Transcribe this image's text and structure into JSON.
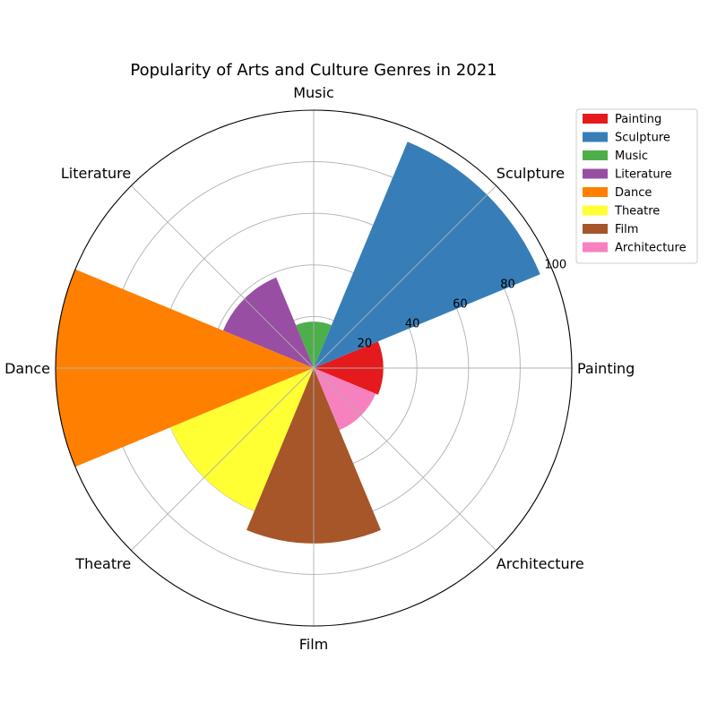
{
  "chart_data": {
    "type": "bar",
    "subtype": "polar",
    "title": "Popularity of Arts and Culture Genres in 2021",
    "categories": [
      "Painting",
      "Sculpture",
      "Music",
      "Literature",
      "Dance",
      "Theatre",
      "Film",
      "Architecture"
    ],
    "values": [
      27,
      95,
      18,
      38,
      100,
      60,
      68,
      26
    ],
    "colors": [
      "#e41a1c",
      "#377eb8",
      "#4daf4a",
      "#984ea3",
      "#ff7f00",
      "#ffff33",
      "#a65628",
      "#f781bf"
    ],
    "rlim": [
      0,
      100
    ],
    "rticks": [
      20,
      40,
      60,
      80,
      100
    ],
    "grid": true,
    "legend": {
      "placement": "top-right",
      "entries": [
        "Painting",
        "Sculpture",
        "Music",
        "Literature",
        "Dance",
        "Theatre",
        "Film",
        "Architecture"
      ]
    }
  }
}
